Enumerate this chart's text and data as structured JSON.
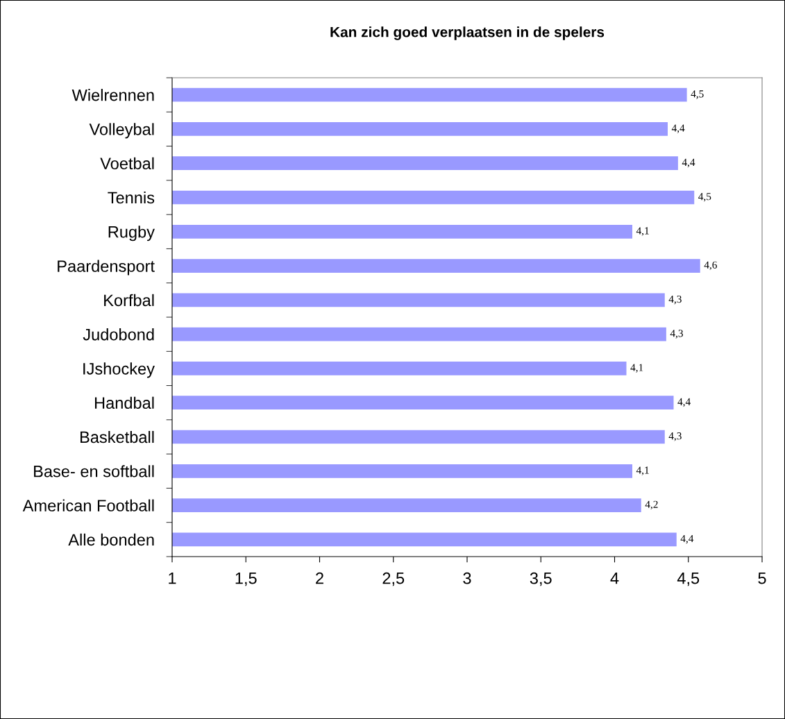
{
  "chart_data": {
    "type": "bar",
    "orientation": "horizontal",
    "title": "Kan zich goed verplaatsen in de spelers",
    "categories": [
      "Wielrennen",
      "Volleybal",
      "Voetbal",
      "Tennis",
      "Rugby",
      "Paardensport",
      "Korfbal",
      "Judobond",
      "IJshockey",
      "Handbal",
      "Basketball",
      "Base- en softball",
      "American Football",
      "Alle bonden"
    ],
    "values": [
      4.49,
      4.36,
      4.43,
      4.54,
      4.12,
      4.58,
      4.34,
      4.35,
      4.08,
      4.4,
      4.34,
      4.12,
      4.18,
      4.42
    ],
    "value_labels": [
      "4,5",
      "4,4",
      "4,4",
      "4,5",
      "4,1",
      "4,6",
      "4,3",
      "4,3",
      "4,1",
      "4,4",
      "4,3",
      "4,1",
      "4,2",
      "4,4"
    ],
    "color": "#9999ff",
    "xlim": [
      1,
      5
    ],
    "xticks": [
      1,
      {
        "value": 1.5,
        "label": "1,5"
      },
      2,
      {
        "value": 2.5,
        "label": "2,5"
      },
      3,
      {
        "value": 3.5,
        "label": "3,5"
      },
      4,
      {
        "value": 4.5,
        "label": "4,5"
      },
      5
    ],
    "grid": false,
    "legend": false
  }
}
